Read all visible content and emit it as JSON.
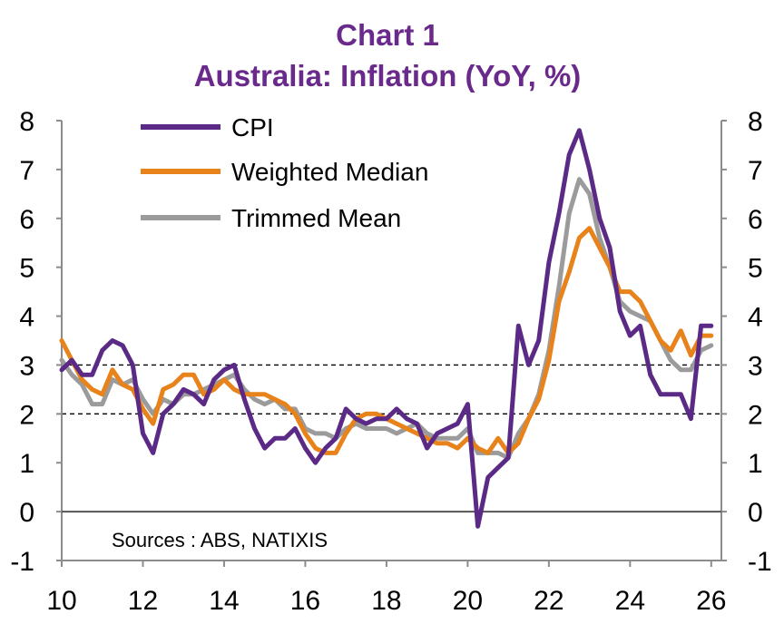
{
  "chart_data": {
    "type": "line",
    "title": "Chart 1",
    "subtitle": "Australia: Inflation (YoY, %)",
    "source": "Sources : ABS, NATIXIS",
    "xlabel": "",
    "ylabel": "",
    "xlim": [
      10,
      26.25
    ],
    "ylim": [
      -1,
      8
    ],
    "x_tick_labels": [
      "10",
      "12",
      "14",
      "16",
      "18",
      "20",
      "22",
      "24",
      "26"
    ],
    "y_tick_labels": [
      "-1",
      "0",
      "1",
      "2",
      "3",
      "4",
      "5",
      "6",
      "7",
      "8"
    ],
    "x_ticks": [
      10,
      12,
      14,
      16,
      18,
      20,
      22,
      24,
      26
    ],
    "y_ticks": [
      -1,
      0,
      1,
      2,
      3,
      4,
      5,
      6,
      7,
      8
    ],
    "reference_lines": [
      2,
      3
    ],
    "legend_position": "top-left",
    "series": [
      {
        "name": "CPI",
        "color": "#5b2a86",
        "x": [
          10.0,
          10.25,
          10.5,
          10.75,
          11.0,
          11.25,
          11.5,
          11.75,
          12.0,
          12.25,
          12.5,
          12.75,
          13.0,
          13.25,
          13.5,
          13.75,
          14.0,
          14.25,
          14.5,
          14.75,
          15.0,
          15.25,
          15.5,
          15.75,
          16.0,
          16.25,
          16.5,
          16.75,
          17.0,
          17.25,
          17.5,
          17.75,
          18.0,
          18.25,
          18.5,
          18.75,
          19.0,
          19.25,
          19.5,
          19.75,
          20.0,
          20.25,
          20.5,
          20.75,
          21.0,
          21.25,
          21.5,
          21.75,
          22.0,
          22.25,
          22.5,
          22.75,
          23.0,
          23.25,
          23.5,
          23.75,
          24.0,
          24.25,
          24.5,
          24.75,
          25.0,
          25.25,
          25.5,
          25.75,
          26.0
        ],
        "values": [
          2.9,
          3.1,
          2.8,
          2.8,
          3.3,
          3.5,
          3.4,
          3.0,
          1.6,
          1.2,
          2.0,
          2.2,
          2.5,
          2.4,
          2.2,
          2.7,
          2.9,
          3.0,
          2.3,
          1.7,
          1.3,
          1.5,
          1.5,
          1.7,
          1.3,
          1.0,
          1.3,
          1.5,
          2.1,
          1.9,
          1.8,
          1.9,
          1.9,
          2.1,
          1.9,
          1.8,
          1.3,
          1.6,
          1.7,
          1.8,
          2.2,
          -0.3,
          0.7,
          0.9,
          1.1,
          3.8,
          3.0,
          3.5,
          5.1,
          6.1,
          7.3,
          7.8,
          7.0,
          6.0,
          5.4,
          4.1,
          3.6,
          3.8,
          2.8,
          2.4,
          2.4,
          2.4,
          1.9,
          3.8,
          3.8
        ]
      },
      {
        "name": "Weighted Median",
        "color": "#e8821a",
        "x": [
          10.0,
          10.25,
          10.5,
          10.75,
          11.0,
          11.25,
          11.5,
          11.75,
          12.0,
          12.25,
          12.5,
          12.75,
          13.0,
          13.25,
          13.5,
          13.75,
          14.0,
          14.25,
          14.5,
          14.75,
          15.0,
          15.25,
          15.5,
          15.75,
          16.0,
          16.25,
          16.5,
          16.75,
          17.0,
          17.25,
          17.5,
          17.75,
          18.0,
          18.25,
          18.5,
          18.75,
          19.0,
          19.25,
          19.5,
          19.75,
          20.0,
          20.25,
          20.5,
          20.75,
          21.0,
          21.25,
          21.5,
          21.75,
          22.0,
          22.25,
          22.5,
          22.75,
          23.0,
          23.25,
          23.5,
          23.75,
          24.0,
          24.25,
          24.5,
          24.75,
          25.0,
          25.25,
          25.5,
          25.75,
          26.0
        ],
        "values": [
          3.5,
          3.1,
          2.7,
          2.5,
          2.4,
          2.9,
          2.6,
          2.5,
          2.1,
          1.8,
          2.5,
          2.6,
          2.8,
          2.8,
          2.4,
          2.5,
          2.7,
          2.5,
          2.4,
          2.4,
          2.4,
          2.3,
          2.2,
          2.0,
          1.6,
          1.3,
          1.2,
          1.2,
          1.6,
          1.9,
          2.0,
          2.0,
          1.9,
          1.8,
          1.7,
          1.6,
          1.5,
          1.4,
          1.4,
          1.3,
          1.5,
          1.3,
          1.2,
          1.5,
          1.2,
          1.4,
          1.9,
          2.3,
          3.1,
          4.3,
          4.9,
          5.6,
          5.8,
          5.4,
          5.0,
          4.5,
          4.5,
          4.3,
          3.9,
          3.5,
          3.3,
          3.7,
          3.2,
          3.6,
          3.6
        ]
      },
      {
        "name": "Trimmed Mean",
        "color": "#9b9b9b",
        "x": [
          10.0,
          10.25,
          10.5,
          10.75,
          11.0,
          11.25,
          11.5,
          11.75,
          12.0,
          12.25,
          12.5,
          12.75,
          13.0,
          13.25,
          13.5,
          13.75,
          14.0,
          14.25,
          14.5,
          14.75,
          15.0,
          15.25,
          15.5,
          15.75,
          16.0,
          16.25,
          16.5,
          16.75,
          17.0,
          17.25,
          17.5,
          17.75,
          18.0,
          18.25,
          18.5,
          18.75,
          19.0,
          19.25,
          19.5,
          19.75,
          20.0,
          20.25,
          20.5,
          20.75,
          21.0,
          21.25,
          21.5,
          21.75,
          22.0,
          22.25,
          22.5,
          22.75,
          23.0,
          23.25,
          23.5,
          23.75,
          24.0,
          24.25,
          24.5,
          24.75,
          25.0,
          25.25,
          25.5,
          25.75,
          26.0
        ],
        "values": [
          3.1,
          2.8,
          2.6,
          2.2,
          2.2,
          2.7,
          2.6,
          2.7,
          2.3,
          2.0,
          2.3,
          2.2,
          2.4,
          2.4,
          2.5,
          2.6,
          2.7,
          2.8,
          2.5,
          2.3,
          2.2,
          2.3,
          2.1,
          2.1,
          1.7,
          1.6,
          1.6,
          1.5,
          1.7,
          1.8,
          1.7,
          1.7,
          1.7,
          1.6,
          1.7,
          1.8,
          1.6,
          1.5,
          1.5,
          1.5,
          1.7,
          1.2,
          1.2,
          1.2,
          1.1,
          1.6,
          1.9,
          2.4,
          3.3,
          4.6,
          6.1,
          6.8,
          6.5,
          5.6,
          5.0,
          4.3,
          4.1,
          4.0,
          3.9,
          3.5,
          3.1,
          2.9,
          2.9,
          3.3,
          3.4
        ]
      }
    ]
  }
}
